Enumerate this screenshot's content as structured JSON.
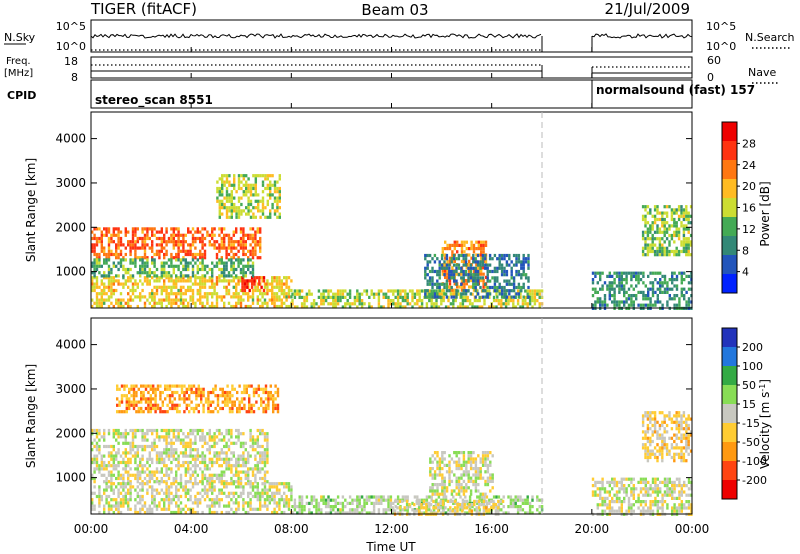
{
  "header": {
    "radar_title": "TIGER (fitACF)",
    "beam": "Beam 03",
    "date": "21/Jul/2009"
  },
  "nsky_panel": {
    "left_label": "N.Sky",
    "right_label": "N.Search",
    "left_ticks": [
      "10^5",
      "10^0"
    ],
    "right_ticks": [
      "10^5",
      "10^0"
    ]
  },
  "freq_panel": {
    "left_label_line1": "Freq.",
    "left_label_line2": "[MHz]",
    "right_label": "Nave",
    "left_ticks": [
      "18",
      "8"
    ],
    "right_ticks": [
      "60",
      "0"
    ]
  },
  "cpid_panel": {
    "label": "CPID",
    "segments": [
      {
        "name": "stereo_scan 8551",
        "start_hour": 0,
        "end_hour": 18
      },
      {
        "name": "normalsound (fast) 157",
        "start_hour": 20,
        "end_hour": 24
      }
    ]
  },
  "x_axis": {
    "label": "Time UT",
    "ticks": [
      "00:00",
      "04:00",
      "08:00",
      "12:00",
      "16:00",
      "20:00",
      "00:00"
    ],
    "range_hours": [
      0,
      24
    ]
  },
  "colors": {
    "power": [
      "#0022ff",
      "#2255bb",
      "#338877",
      "#44aa55",
      "#ccdd33",
      "#ffbb22",
      "#ff7711",
      "#ff3311",
      "#ee0000"
    ],
    "velocity": [
      "#2233bb",
      "#2277dd",
      "#33aa44",
      "#88dd55",
      "#c8c8c0",
      "#ffcc33",
      "#ff9911",
      "#ff4411",
      "#ee0000"
    ]
  },
  "chart_data": [
    {
      "type": "heatmap",
      "name": "power",
      "ylabel": "Slant Range [km]",
      "ylim": [
        180,
        4600
      ],
      "y_ticks": [
        "1000",
        "2000",
        "3000",
        "4000"
      ],
      "y_tick_values": [
        1000,
        2000,
        3000,
        4000
      ],
      "colorbar": {
        "label": "Power [dB]",
        "range": [
          0,
          32
        ],
        "tick_labels": [
          "4",
          "8",
          "12",
          "16",
          "20",
          "24",
          "28"
        ],
        "tick_values": [
          4,
          8,
          12,
          16,
          20,
          24,
          28
        ]
      },
      "data_gaps_hours": [
        [
          18,
          20
        ]
      ],
      "echo_regions": [
        {
          "t": [
            0.0,
            6.8
          ],
          "r": [
            1300,
            2000
          ],
          "level": 24
        },
        {
          "t": [
            0.0,
            8.0
          ],
          "r": [
            180,
            900
          ],
          "level": 18
        },
        {
          "t": [
            6.0,
            7.0
          ],
          "r": [
            600,
            900
          ],
          "level": 28
        },
        {
          "t": [
            5.0,
            7.5
          ],
          "r": [
            2200,
            3200
          ],
          "level": 16
        },
        {
          "t": [
            0.0,
            6.5
          ],
          "r": [
            900,
            1300
          ],
          "level": 12
        },
        {
          "t": [
            8.0,
            18.0
          ],
          "r": [
            180,
            600
          ],
          "level": 16
        },
        {
          "t": [
            14.0,
            15.8
          ],
          "r": [
            600,
            1700
          ],
          "level": 22
        },
        {
          "t": [
            13.3,
            17.5
          ],
          "r": [
            400,
            1400
          ],
          "level": 8
        },
        {
          "t": [
            20.0,
            24.0
          ],
          "r": [
            180,
            1000
          ],
          "level": 10
        },
        {
          "t": [
            22.0,
            24.0
          ],
          "r": [
            1400,
            2500
          ],
          "level": 14
        }
      ]
    },
    {
      "type": "heatmap",
      "name": "velocity",
      "ylabel": "Slant Range [km]",
      "ylim": [
        180,
        4600
      ],
      "y_ticks": [
        "1000",
        "2000",
        "3000",
        "4000"
      ],
      "y_tick_values": [
        1000,
        2000,
        3000,
        4000
      ],
      "colorbar": {
        "label": "Velocity [m s^-1]",
        "range": [
          -250,
          250
        ],
        "tick_labels": [
          "200",
          "100",
          "50",
          "15",
          "-15",
          "-50",
          "-100",
          "-200"
        ],
        "tick_values": [
          200,
          100,
          50,
          15,
          -15,
          -50,
          -100,
          -200
        ]
      },
      "data_gaps_hours": [
        [
          18,
          20
        ]
      ],
      "echo_regions": [
        {
          "t": [
            0.0,
            7.0
          ],
          "r": [
            900,
            2100
          ],
          "level": 0
        },
        {
          "t": [
            1.0,
            7.5
          ],
          "r": [
            2500,
            3100
          ],
          "level": -100
        },
        {
          "t": [
            0.0,
            8.0
          ],
          "r": [
            180,
            900
          ],
          "level": 0
        },
        {
          "t": [
            8.0,
            18.0
          ],
          "r": [
            180,
            600
          ],
          "level": 30
        },
        {
          "t": [
            12.0,
            16.5
          ],
          "r": [
            180,
            500
          ],
          "level": -30
        },
        {
          "t": [
            13.5,
            16.0
          ],
          "r": [
            600,
            1600
          ],
          "level": 0
        },
        {
          "t": [
            20.0,
            24.0
          ],
          "r": [
            180,
            1000
          ],
          "level": 0
        },
        {
          "t": [
            22.0,
            24.0
          ],
          "r": [
            1400,
            2500
          ],
          "level": -40
        }
      ]
    }
  ]
}
